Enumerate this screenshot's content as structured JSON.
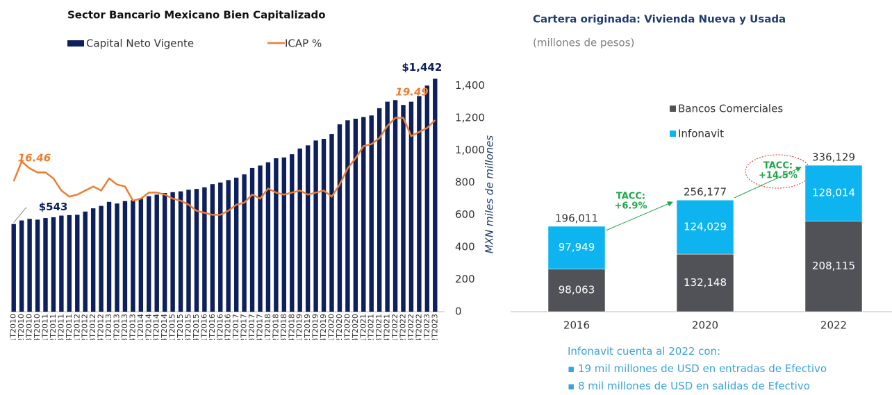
{
  "chart_data": [
    {
      "type": "bar",
      "title": "Sector Bancario Mexicano Bien Capitalizado",
      "y_label": "MXN miles de millones",
      "categories": [
        "1T2010",
        "2T2010",
        "3T2010",
        "4T2010",
        "1T2011",
        "2T2011",
        "3T2011",
        "4T2011",
        "1T2012",
        "2T2012",
        "3T2012",
        "4T2012",
        "1T2013",
        "2T2013",
        "3T2013",
        "4T2013",
        "1T2014",
        "2T2014",
        "3T2014",
        "4T2014",
        "1T2015",
        "2T2015",
        "3T2015",
        "4T2015",
        "1T2016",
        "2T2016",
        "3T2016",
        "4T2016",
        "1T2017",
        "2T2017",
        "3T2017",
        "4T2017",
        "1T2018",
        "2T2018",
        "3T2018",
        "4T2018",
        "1T2019",
        "2T2019",
        "3T2019",
        "4T2019",
        "1T2020",
        "2T2020",
        "3T2020",
        "4T2020",
        "1T2021",
        "2T2021",
        "3T2021",
        "4T2021",
        "1T2022",
        "2T2022",
        "3T2022",
        "4T2022",
        "1T2023",
        "2T2023"
      ],
      "series": [
        {
          "name": "Capital Neto Vigente",
          "color": "#0d1f5c",
          "values": [
            543,
            565,
            575,
            570,
            580,
            585,
            595,
            598,
            600,
            620,
            640,
            655,
            680,
            670,
            685,
            690,
            700,
            715,
            725,
            735,
            740,
            745,
            755,
            760,
            770,
            790,
            800,
            815,
            830,
            850,
            890,
            905,
            925,
            950,
            955,
            975,
            1010,
            1030,
            1060,
            1070,
            1100,
            1160,
            1185,
            1195,
            1205,
            1215,
            1260,
            1300,
            1310,
            1280,
            1300,
            1335,
            1400,
            1442
          ],
          "value_labels": [
            "$543",
            null,
            null,
            null,
            null,
            null,
            null,
            null,
            null,
            null,
            null,
            null,
            null,
            null,
            null,
            null,
            null,
            null,
            null,
            null,
            null,
            null,
            null,
            null,
            null,
            null,
            null,
            null,
            null,
            null,
            null,
            null,
            null,
            null,
            null,
            null,
            null,
            null,
            null,
            null,
            null,
            null,
            null,
            null,
            null,
            null,
            null,
            null,
            null,
            null,
            null,
            null,
            null,
            "$1,442"
          ]
        },
        {
          "name": "ICAP %",
          "color": "#ed7d31",
          "type": "line",
          "axis": "y2",
          "values": [
            16.46,
            17.44,
            17.1,
            16.9,
            16.9,
            16.6,
            16.0,
            15.7,
            15.8,
            16.0,
            16.2,
            16.0,
            16.6,
            16.3,
            16.2,
            15.5,
            15.6,
            15.9,
            15.9,
            15.8,
            15.6,
            15.5,
            15.3,
            15.0,
            14.9,
            14.8,
            14.8,
            15.0,
            15.3,
            15.4,
            15.8,
            15.6,
            16.1,
            15.9,
            15.8,
            15.9,
            16.0,
            15.8,
            15.9,
            16.0,
            15.7,
            16.3,
            17.1,
            17.6,
            18.2,
            18.3,
            18.6,
            19.2,
            19.6,
            19.6,
            18.7,
            18.9,
            19.1,
            19.49
          ],
          "value_labels": [
            "16.46",
            null,
            null,
            null,
            null,
            null,
            null,
            null,
            null,
            null,
            null,
            null,
            null,
            null,
            null,
            null,
            null,
            null,
            null,
            null,
            null,
            null,
            null,
            null,
            null,
            null,
            null,
            null,
            null,
            null,
            null,
            null,
            null,
            null,
            null,
            null,
            null,
            null,
            null,
            null,
            null,
            null,
            null,
            null,
            null,
            null,
            null,
            null,
            null,
            null,
            null,
            null,
            null,
            "19.49"
          ]
        }
      ],
      "ylim": [
        0,
        1500
      ],
      "yticks": [
        0,
        200,
        400,
        600,
        800,
        {
          "value": 1000,
          "label": "1,000"
        },
        {
          "value": 1200,
          "label": "1,200"
        },
        {
          "value": 1400,
          "label": "1,400"
        }
      ],
      "y2lim": [
        10,
        22
      ],
      "grid": false,
      "legend": "top"
    },
    {
      "type": "stacked_bar",
      "title": "Cartera originada: Vivienda Nueva y Usada",
      "subtitle": "(millones de pesos)",
      "categories": [
        "2016",
        "2020",
        "2022"
      ],
      "series": [
        {
          "name": "Bancos Comerciales",
          "color": "#505257",
          "values": [
            98063,
            132148,
            208115
          ],
          "value_labels": [
            "98,063",
            "132,148",
            "208,115"
          ]
        },
        {
          "name": "Infonavit",
          "color": "#0db4ef",
          "values": [
            97949,
            124029,
            128014
          ],
          "value_labels": [
            "97,949",
            "124,029",
            "128,014"
          ]
        }
      ],
      "totals": [
        196011,
        256177,
        336129
      ],
      "total_labels": [
        "196,011",
        "256,177",
        "336,129"
      ],
      "annotations": [
        [
          "TACC:",
          "+6.9%"
        ],
        [
          "TACC:",
          "+14.5%"
        ]
      ],
      "ylim": [
        0,
        400000
      ],
      "grid": false,
      "legend": "top-center"
    }
  ],
  "note": {
    "title": "Infonavit cuenta al 2022 con:",
    "bullets": [
      "19 mil millones de USD en entradas de Efectivo",
      "8 mil millones de USD en salidas de Efectivo"
    ]
  }
}
